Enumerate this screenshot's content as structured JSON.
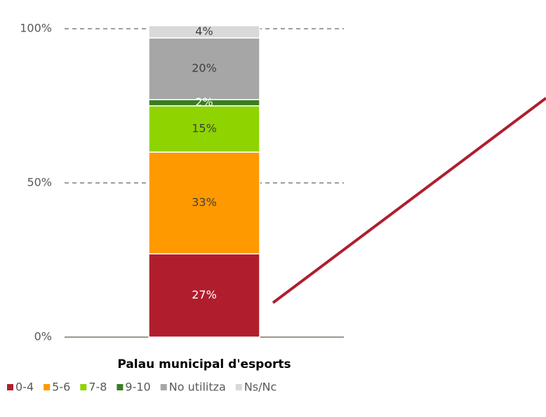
{
  "chart_data": {
    "type": "stacked_bar",
    "categories": [
      "Palau municipal d'esports"
    ],
    "series": [
      {
        "name": "0-4",
        "color": "#b01e2d",
        "values": [
          27
        ],
        "value_labels": [
          "27%"
        ]
      },
      {
        "name": "5-6",
        "color": "#ff9900",
        "values": [
          33
        ],
        "value_labels": [
          "33%"
        ]
      },
      {
        "name": "7-8",
        "color": "#8fd400",
        "values": [
          15
        ],
        "value_labels": [
          "15%"
        ]
      },
      {
        "name": "9-10",
        "color": "#3a7d23",
        "values": [
          2
        ],
        "value_labels": [
          "2%"
        ]
      },
      {
        "name": "No utilitza",
        "color": "#a6a6a6",
        "values": [
          20
        ],
        "value_labels": [
          "20%"
        ]
      },
      {
        "name": "Ns/Nc",
        "color": "#d9d9d9",
        "values": [
          4
        ],
        "value_labels": [
          "4%"
        ]
      }
    ],
    "ylim": [
      0,
      100
    ],
    "yticks": [
      {
        "value": 0,
        "label": "0%"
      },
      {
        "value": 50,
        "label": "50%"
      },
      {
        "value": 100,
        "label": "100%"
      }
    ],
    "grid": true,
    "legend": "bottom"
  }
}
